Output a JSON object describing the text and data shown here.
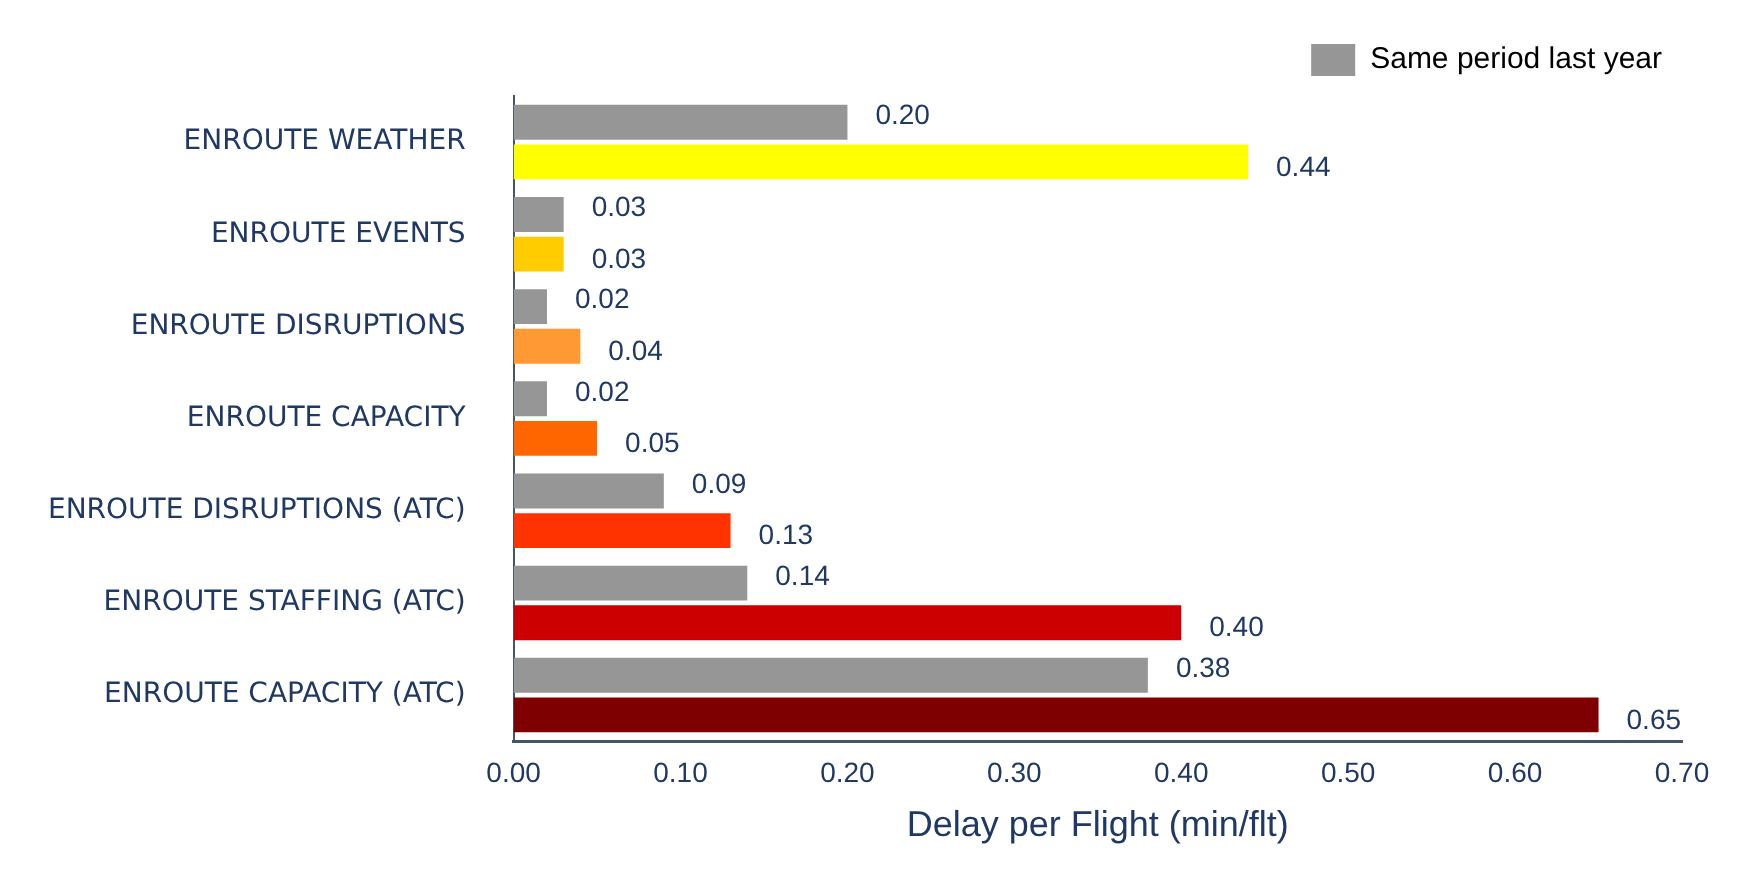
{
  "chart_data": {
    "type": "bar",
    "orientation": "horizontal",
    "xlabel": "Delay per Flight (min/flt)",
    "categories": [
      "ENROUTE WEATHER",
      "ENROUTE EVENTS",
      "ENROUTE DISRUPTIONS",
      "ENROUTE CAPACITY",
      "ENROUTE DISRUPTIONS (ATC)",
      "ENROUTE STAFFING (ATC)",
      "ENROUTE CAPACITY (ATC)"
    ],
    "series": [
      {
        "name": "Same period last year",
        "color": "#969696",
        "values": [
          0.2,
          0.03,
          0.02,
          0.02,
          0.09,
          0.14,
          0.38
        ],
        "value_labels": [
          "0.20",
          "0.03",
          "0.02",
          "0.02",
          "0.09",
          "0.14",
          "0.38"
        ]
      },
      {
        "colors": [
          "#ffff00",
          "#ffcc00",
          "#ff9933",
          "#ff6600",
          "#ff3300",
          "#cc0000",
          "#7f0000"
        ],
        "values": [
          0.44,
          0.03,
          0.04,
          0.05,
          0.13,
          0.4,
          0.65
        ],
        "value_labels": [
          "0.44",
          "0.03",
          "0.04",
          "0.05",
          "0.13",
          "0.40",
          "0.65"
        ]
      }
    ],
    "xlim": [
      0,
      0.7
    ],
    "xticks": [
      {
        "value": 0,
        "label": "0.00"
      },
      {
        "value": 0.1,
        "label": "0.10"
      },
      {
        "value": 0.2,
        "label": "0.20"
      },
      {
        "value": 0.3,
        "label": "0.30"
      },
      {
        "value": 0.4,
        "label": "0.40"
      },
      {
        "value": 0.5,
        "label": "0.50"
      },
      {
        "value": 0.6,
        "label": "0.60"
      },
      {
        "value": 0.7,
        "label": "0.70"
      }
    ],
    "grid": false,
    "legend": "top right"
  }
}
